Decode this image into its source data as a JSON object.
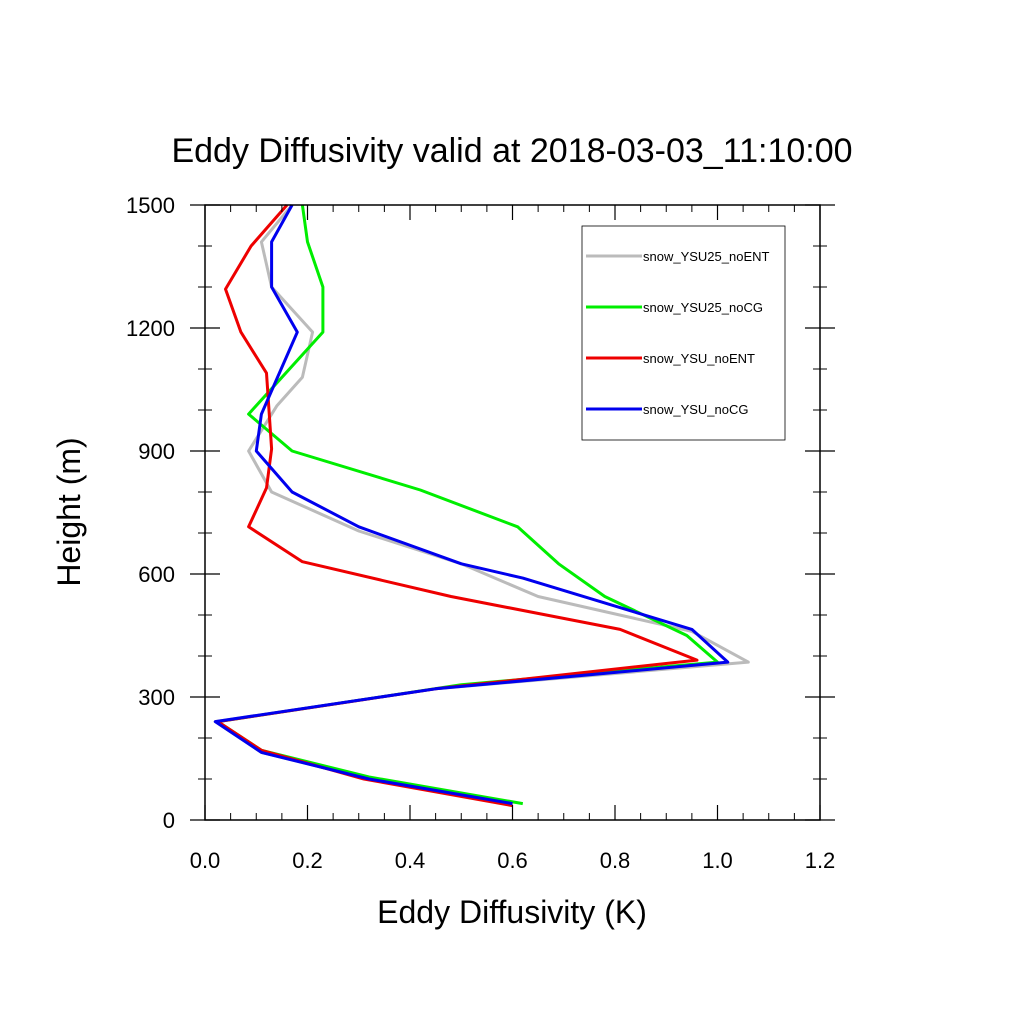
{
  "chart_data": {
    "type": "line",
    "title": "Eddy Diffusivity valid at 2018-03-03_11:10:00",
    "xlabel": "Eddy Diffusivity (K)",
    "ylabel": "Height (m)",
    "xlim": [
      0.0,
      1.2
    ],
    "ylim": [
      0,
      1500
    ],
    "xticks": [
      "0.0",
      "0.2",
      "0.4",
      "0.6",
      "0.8",
      "1.0",
      "1.2"
    ],
    "yticks": [
      "0",
      "300",
      "600",
      "900",
      "1200",
      "1500"
    ],
    "grid": false,
    "legend_position": "top-right",
    "series": [
      {
        "name": "snow_YSU25_noENT",
        "color": "#bbbbbb",
        "points": [
          [
            0.6,
            40
          ],
          [
            0.32,
            100
          ],
          [
            0.11,
            165
          ],
          [
            0.02,
            240
          ],
          [
            0.45,
            320
          ],
          [
            1.06,
            385
          ],
          [
            0.95,
            460
          ],
          [
            0.65,
            545
          ],
          [
            0.5,
            625
          ],
          [
            0.3,
            705
          ],
          [
            0.13,
            800
          ],
          [
            0.085,
            900
          ],
          [
            0.14,
            1010
          ],
          [
            0.19,
            1080
          ],
          [
            0.21,
            1190
          ],
          [
            0.13,
            1300
          ],
          [
            0.11,
            1410
          ],
          [
            0.17,
            1500
          ]
        ]
      },
      {
        "name": "snow_YSU25_noCG",
        "color": "#00ee00",
        "points": [
          [
            0.62,
            40
          ],
          [
            0.32,
            105
          ],
          [
            0.11,
            170
          ],
          [
            0.025,
            240
          ],
          [
            0.5,
            330
          ],
          [
            1.0,
            385
          ],
          [
            0.94,
            450
          ],
          [
            0.78,
            545
          ],
          [
            0.69,
            625
          ],
          [
            0.61,
            715
          ],
          [
            0.42,
            805
          ],
          [
            0.17,
            900
          ],
          [
            0.085,
            990
          ],
          [
            0.23,
            1190
          ],
          [
            0.23,
            1300
          ],
          [
            0.2,
            1410
          ],
          [
            0.19,
            1500
          ]
        ]
      },
      {
        "name": "snow_YSU_noENT",
        "color": "#ee0000",
        "points": [
          [
            0.6,
            35
          ],
          [
            0.31,
            100
          ],
          [
            0.11,
            170
          ],
          [
            0.025,
            240
          ],
          [
            0.45,
            320
          ],
          [
            0.96,
            390
          ],
          [
            0.81,
            465
          ],
          [
            0.48,
            545
          ],
          [
            0.19,
            630
          ],
          [
            0.085,
            715
          ],
          [
            0.12,
            810
          ],
          [
            0.13,
            905
          ],
          [
            0.12,
            1090
          ],
          [
            0.07,
            1190
          ],
          [
            0.04,
            1295
          ],
          [
            0.09,
            1400
          ],
          [
            0.16,
            1500
          ]
        ]
      },
      {
        "name": "snow_YSU_noCG",
        "color": "#0000ee",
        "points": [
          [
            0.6,
            40
          ],
          [
            0.32,
            100
          ],
          [
            0.11,
            165
          ],
          [
            0.02,
            240
          ],
          [
            0.45,
            320
          ],
          [
            1.02,
            385
          ],
          [
            0.95,
            465
          ],
          [
            0.62,
            590
          ],
          [
            0.5,
            625
          ],
          [
            0.3,
            715
          ],
          [
            0.17,
            800
          ],
          [
            0.1,
            900
          ],
          [
            0.11,
            990
          ],
          [
            0.18,
            1190
          ],
          [
            0.13,
            1300
          ],
          [
            0.13,
            1410
          ],
          [
            0.17,
            1500
          ]
        ]
      }
    ]
  }
}
